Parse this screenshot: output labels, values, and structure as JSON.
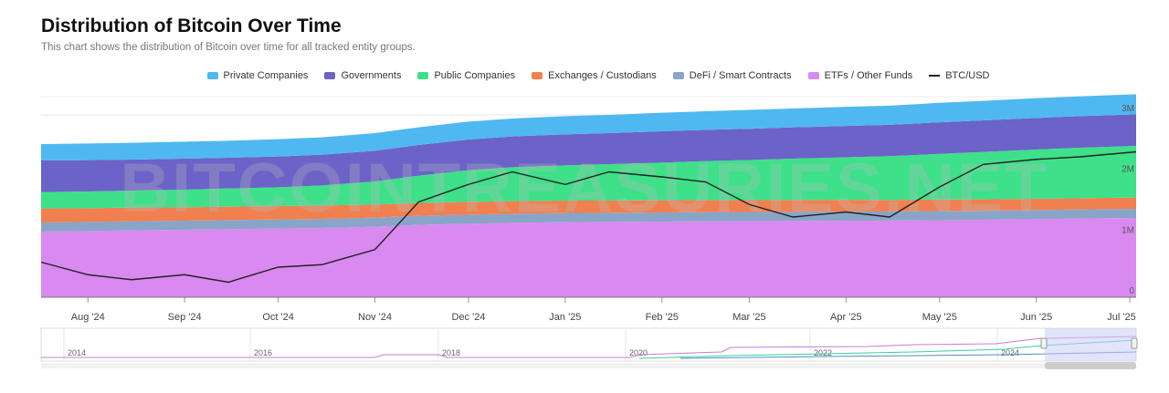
{
  "header": {
    "title": "Distribution of Bitcoin Over Time",
    "subtitle": "This chart shows the distribution of Bitcoin over time for all tracked entity groups."
  },
  "watermark": "BITCOINTREASURIES.NET",
  "chart_data": {
    "type": "area",
    "stacked": true,
    "x_dates": [
      "2024-07-17",
      "2024-08-01",
      "2024-08-15",
      "2024-09-01",
      "2024-09-15",
      "2024-10-01",
      "2024-10-15",
      "2024-11-01",
      "2024-11-15",
      "2024-12-01",
      "2024-12-15",
      "2025-01-01",
      "2025-01-15",
      "2025-02-01",
      "2025-02-15",
      "2025-03-01",
      "2025-03-15",
      "2025-04-01",
      "2025-04-15",
      "2025-05-01",
      "2025-05-15",
      "2025-06-01",
      "2025-06-15",
      "2025-07-03"
    ],
    "xticks": [
      "Aug '24",
      "Sep '24",
      "Oct '24",
      "Nov '24",
      "Dec '24",
      "Jan '25",
      "Feb '25",
      "Mar '25",
      "Apr '25",
      "May '25",
      "Jun '25",
      "Jul '25"
    ],
    "yticks": [
      "0",
      "1M",
      "2M",
      "3M"
    ],
    "ylim": [
      0,
      3300000
    ],
    "grid": true,
    "legend_position": "top-center",
    "series": [
      {
        "name": "ETFs / Other Funds",
        "color": "#d98af0",
        "values": [
          1080000,
          1090000,
          1100000,
          1110000,
          1120000,
          1130000,
          1140000,
          1160000,
          1190000,
          1210000,
          1225000,
          1235000,
          1240000,
          1245000,
          1250000,
          1252000,
          1255000,
          1258000,
          1262000,
          1268000,
          1275000,
          1285000,
          1295000,
          1305000
        ]
      },
      {
        "name": "DeFi / Smart Contracts",
        "color": "#8aa4c8",
        "values": [
          150000,
          150000,
          150000,
          150000,
          150000,
          150000,
          150000,
          150000,
          150000,
          150000,
          150000,
          150000,
          150000,
          150000,
          150000,
          150000,
          150000,
          150000,
          150000,
          150000,
          150000,
          150000,
          150000,
          150000
        ]
      },
      {
        "name": "Exchanges / Custodians",
        "color": "#f08050",
        "values": [
          230000,
          225000,
          225000,
          220000,
          220000,
          220000,
          220000,
          215000,
          210000,
          210000,
          205000,
          205000,
          200000,
          200000,
          200000,
          195000,
          195000,
          195000,
          190000,
          190000,
          185000,
          185000,
          185000,
          185000
        ]
      },
      {
        "name": "Public Companies",
        "color": "#3ee08a",
        "values": [
          270000,
          275000,
          280000,
          290000,
          300000,
          310000,
          330000,
          380000,
          450000,
          520000,
          560000,
          580000,
          600000,
          620000,
          640000,
          660000,
          680000,
          700000,
          720000,
          750000,
          780000,
          810000,
          830000,
          850000
        ]
      },
      {
        "name": "Governments",
        "color": "#6b63c8",
        "values": [
          520000,
          515000,
          510000,
          510000,
          505000,
          505000,
          505000,
          505000,
          505000,
          505000,
          505000,
          510000,
          510000,
          515000,
          515000,
          515000,
          515000,
          515000,
          515000,
          520000,
          520000,
          520000,
          520000,
          520000
        ]
      },
      {
        "name": "Private Companies",
        "color": "#4fb8f0",
        "values": [
          270000,
          275000,
          275000,
          280000,
          280000,
          285000,
          285000,
          290000,
          290000,
          295000,
          295000,
          300000,
          300000,
          305000,
          305000,
          310000,
          310000,
          315000,
          315000,
          320000,
          320000,
          325000,
          325000,
          330000
        ]
      }
    ],
    "btc_usd": {
      "name": "BTC/USD",
      "color": "#222222",
      "values": [
        64000,
        59000,
        57000,
        59000,
        56000,
        62000,
        63000,
        69000,
        88000,
        95000,
        100000,
        95000,
        100000,
        98000,
        96000,
        87000,
        82000,
        84000,
        82000,
        94000,
        103000,
        105000,
        106000,
        108000
      ]
    }
  },
  "navigator": {
    "year_labels": [
      "2014",
      "2016",
      "2018",
      "2020",
      "2022",
      "2024"
    ]
  }
}
